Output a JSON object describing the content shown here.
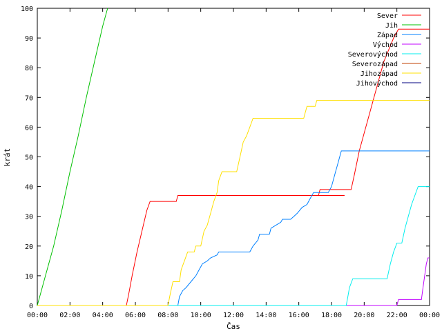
{
  "chart_data": {
    "type": "line",
    "xlabel": "Čas",
    "ylabel": "krát",
    "xlim": [
      0,
      24
    ],
    "ylim": [
      0,
      100
    ],
    "xticks": [
      {
        "value": 0,
        "label": "00:00"
      },
      {
        "value": 2,
        "label": "02:00"
      },
      {
        "value": 4,
        "label": "04:00"
      },
      {
        "value": 6,
        "label": "06:00"
      },
      {
        "value": 8,
        "label": "08:00"
      },
      {
        "value": 10,
        "label": "10:00"
      },
      {
        "value": 12,
        "label": "12:00"
      },
      {
        "value": 14,
        "label": "14:00"
      },
      {
        "value": 16,
        "label": "16:00"
      },
      {
        "value": 18,
        "label": "18:00"
      },
      {
        "value": 20,
        "label": "20:00"
      },
      {
        "value": 22,
        "label": "22:00"
      },
      {
        "value": 24,
        "label": "00:00"
      }
    ],
    "yticks": [
      0,
      10,
      20,
      30,
      40,
      50,
      60,
      70,
      80,
      90,
      100
    ],
    "grid": false,
    "legend_position": "top-right",
    "series": [
      {
        "name": "Sever",
        "color": "#ff0000",
        "points": [
          [
            0,
            0
          ],
          [
            5.45,
            0
          ],
          [
            5.6,
            4
          ],
          [
            5.8,
            10
          ],
          [
            6.1,
            18
          ],
          [
            6.4,
            25
          ],
          [
            6.7,
            32
          ],
          [
            6.9,
            35
          ],
          [
            8.5,
            35
          ],
          [
            8.6,
            37
          ],
          [
            18.8,
            37
          ],
          [
            17.2,
            37
          ],
          [
            17.3,
            39
          ],
          [
            19.2,
            39
          ],
          [
            19.4,
            44
          ],
          [
            19.7,
            52
          ],
          [
            20.0,
            58
          ],
          [
            20.3,
            64
          ],
          [
            20.6,
            70
          ],
          [
            20.9,
            76
          ],
          [
            21.2,
            82
          ],
          [
            21.5,
            86
          ],
          [
            21.8,
            90
          ],
          [
            22.1,
            93
          ],
          [
            24,
            93
          ]
        ]
      },
      {
        "name": "Jih",
        "color": "#00c000",
        "points": [
          [
            0,
            0
          ],
          [
            0.5,
            10
          ],
          [
            1.0,
            20
          ],
          [
            1.5,
            32
          ],
          [
            2.0,
            45
          ],
          [
            2.5,
            57
          ],
          [
            3.0,
            70
          ],
          [
            3.5,
            82
          ],
          [
            4.0,
            94
          ],
          [
            4.3,
            100
          ]
        ]
      },
      {
        "name": "Západ",
        "color": "#0080ff",
        "points": [
          [
            0,
            0
          ],
          [
            8.6,
            0
          ],
          [
            8.7,
            3
          ],
          [
            8.9,
            5
          ],
          [
            9.1,
            6
          ],
          [
            9.4,
            8
          ],
          [
            9.7,
            10
          ],
          [
            9.9,
            12
          ],
          [
            10.1,
            14
          ],
          [
            10.4,
            15
          ],
          [
            10.6,
            16
          ],
          [
            11.0,
            17
          ],
          [
            11.1,
            18
          ],
          [
            13.0,
            18
          ],
          [
            13.2,
            20
          ],
          [
            13.5,
            22
          ],
          [
            13.6,
            24
          ],
          [
            14.2,
            24
          ],
          [
            14.3,
            26
          ],
          [
            14.6,
            27
          ],
          [
            14.9,
            28
          ],
          [
            15.0,
            29
          ],
          [
            15.5,
            29
          ],
          [
            15.7,
            30
          ],
          [
            15.9,
            31
          ],
          [
            16.2,
            33
          ],
          [
            16.5,
            34
          ],
          [
            16.7,
            36
          ],
          [
            16.9,
            38
          ],
          [
            17.8,
            38
          ],
          [
            18.0,
            40
          ],
          [
            18.2,
            44
          ],
          [
            18.4,
            48
          ],
          [
            18.6,
            52
          ],
          [
            24,
            52
          ]
        ]
      },
      {
        "name": "Východ",
        "color": "#c000ff",
        "points": [
          [
            0,
            0
          ],
          [
            22.0,
            0
          ],
          [
            22.1,
            2
          ],
          [
            23.5,
            2
          ],
          [
            23.6,
            6
          ],
          [
            23.7,
            10
          ],
          [
            23.8,
            14
          ],
          [
            23.9,
            16
          ],
          [
            24,
            16
          ]
        ]
      },
      {
        "name": "Severovýchod",
        "color": "#00eeee",
        "points": [
          [
            0,
            0
          ],
          [
            18.9,
            0
          ],
          [
            19.0,
            3
          ],
          [
            19.1,
            6
          ],
          [
            19.3,
            9
          ],
          [
            21.4,
            9
          ],
          [
            21.6,
            14
          ],
          [
            21.8,
            18
          ],
          [
            22.0,
            21
          ],
          [
            22.3,
            21
          ],
          [
            22.5,
            26
          ],
          [
            22.7,
            30
          ],
          [
            22.9,
            34
          ],
          [
            23.1,
            37
          ],
          [
            23.3,
            40
          ],
          [
            24,
            40
          ]
        ]
      },
      {
        "name": "Severozápad",
        "color": "#c04000",
        "points": []
      },
      {
        "name": "Jihozápad",
        "color": "#ffe000",
        "points": [
          [
            0,
            0
          ],
          [
            8.0,
            0
          ],
          [
            8.1,
            3
          ],
          [
            8.3,
            8
          ],
          [
            8.7,
            8
          ],
          [
            8.8,
            12
          ],
          [
            9.0,
            15
          ],
          [
            9.2,
            18
          ],
          [
            9.6,
            18
          ],
          [
            9.7,
            20
          ],
          [
            10.0,
            20
          ],
          [
            10.2,
            25
          ],
          [
            10.4,
            27
          ],
          [
            10.6,
            31
          ],
          [
            10.8,
            35
          ],
          [
            11.0,
            38
          ],
          [
            11.1,
            42
          ],
          [
            11.3,
            45
          ],
          [
            12.2,
            45
          ],
          [
            12.4,
            50
          ],
          [
            12.6,
            55
          ],
          [
            12.8,
            57
          ],
          [
            13.0,
            60
          ],
          [
            13.2,
            63
          ],
          [
            16.3,
            63
          ],
          [
            16.4,
            65
          ],
          [
            16.5,
            67
          ],
          [
            17.0,
            67
          ],
          [
            17.1,
            69
          ],
          [
            24,
            69
          ]
        ]
      },
      {
        "name": "Jihovýchod",
        "color": "#000080",
        "points": []
      }
    ]
  }
}
